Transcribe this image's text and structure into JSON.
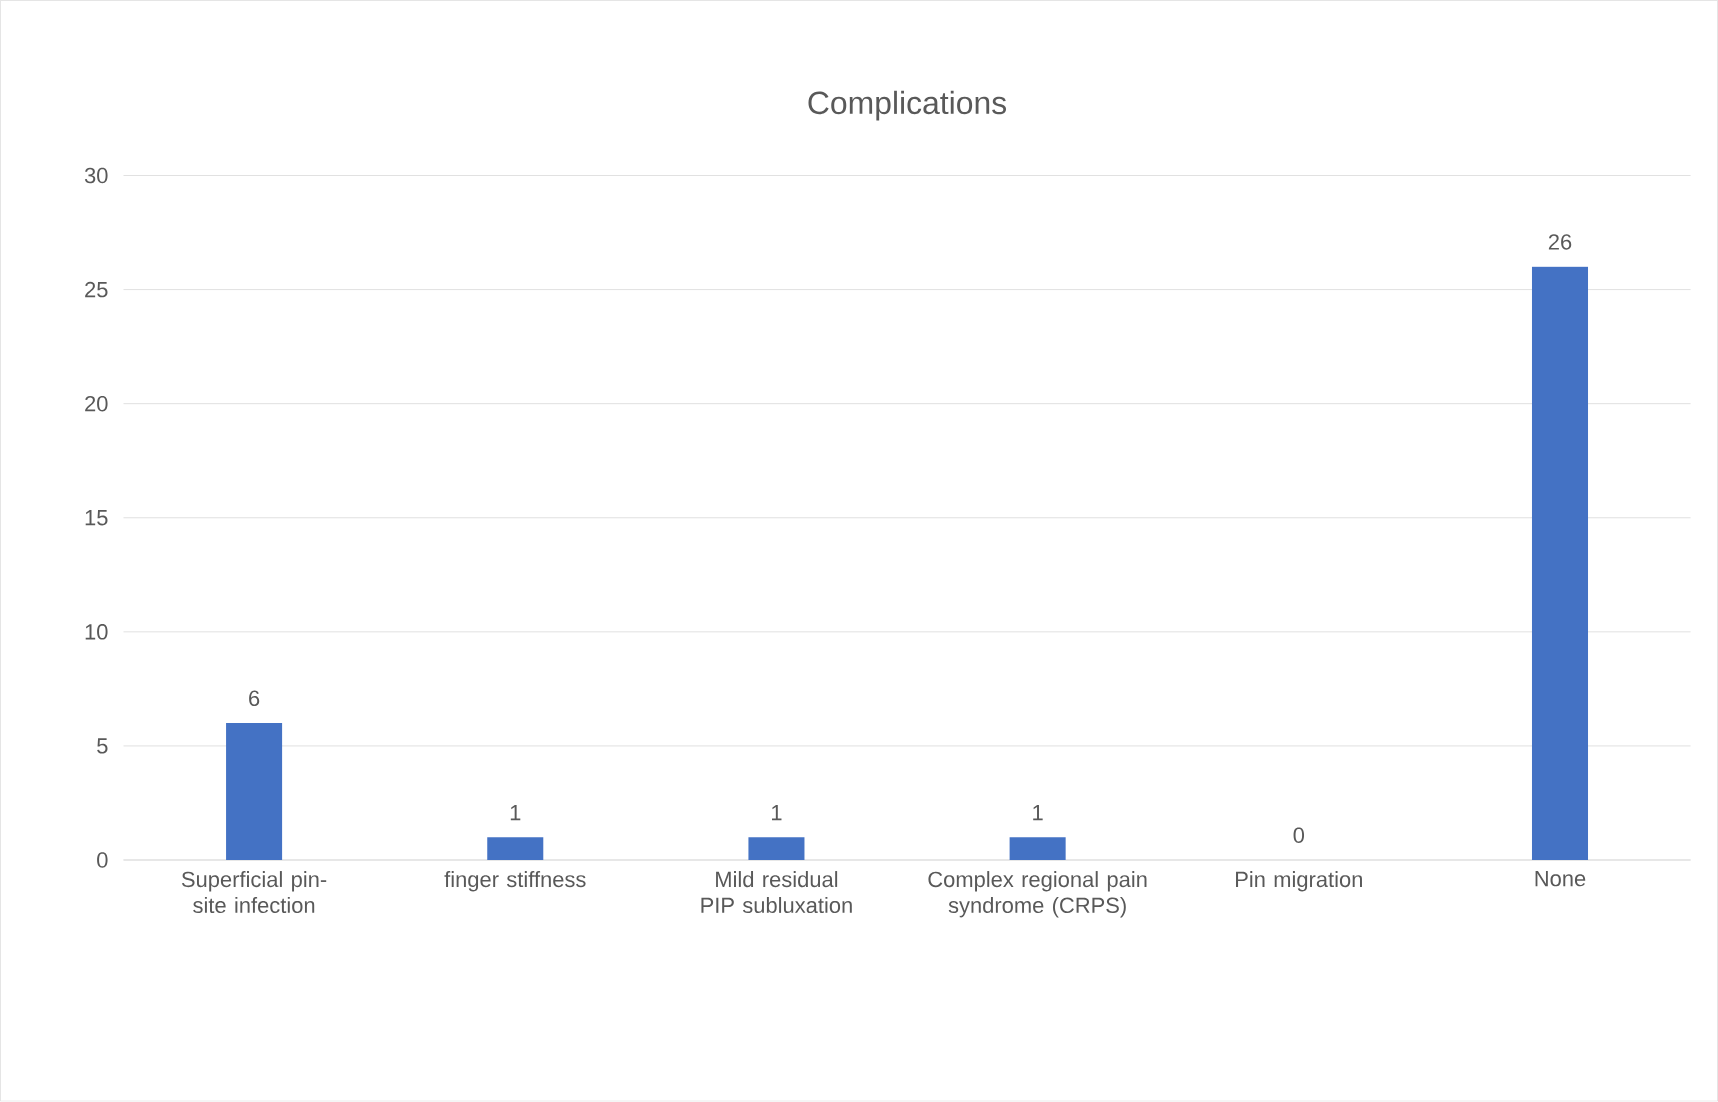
{
  "chart_data": {
    "type": "bar",
    "title": "Complications",
    "categories": [
      "Superficial pin-site infection",
      "finger stiffness",
      "Mild residual PIP subluxation",
      "Complex regional pain syndrome (CRPS)",
      "Pin migration",
      "None"
    ],
    "values": [
      6,
      1,
      1,
      1,
      0,
      26
    ],
    "color": "#4472c4",
    "ylim": [
      0,
      30
    ],
    "yticks": [
      0,
      5,
      10,
      15,
      20,
      25,
      30
    ],
    "grid": "y",
    "data_labels": true
  }
}
